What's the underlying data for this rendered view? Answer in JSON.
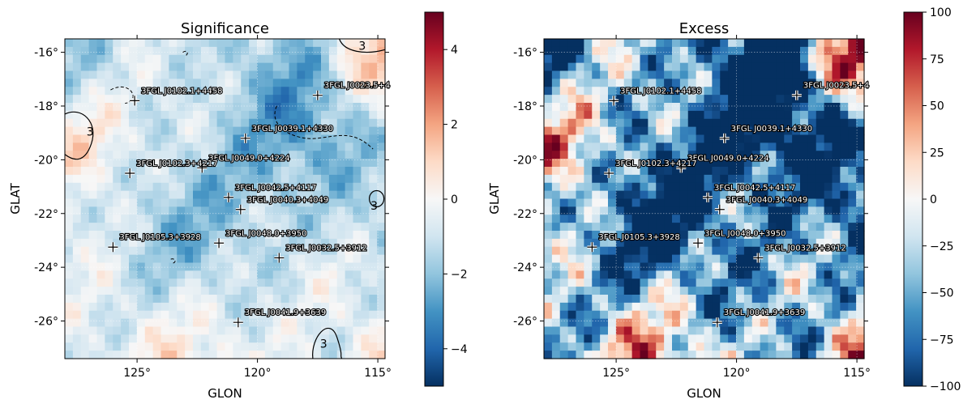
{
  "chart_data": [
    {
      "type": "heatmap",
      "title": "Significance",
      "xlabel": "GLON",
      "ylabel": "GLAT",
      "xlim": [
        128.0,
        114.7
      ],
      "ylim": [
        -27.4,
        -15.5
      ],
      "x_ticks": [
        125,
        120,
        115
      ],
      "x_tick_labels": [
        "125°",
        "120°",
        "115°"
      ],
      "y_ticks": [
        -16,
        -18,
        -20,
        -22,
        -24,
        -26
      ],
      "y_tick_labels": [
        "-16°",
        "-18°",
        "-20°",
        "-22°",
        "-24°",
        "-26°"
      ],
      "colormap": "RdBu_r",
      "colorbar_range": [
        -5,
        5
      ],
      "colorbar_ticks": [
        4,
        2,
        0,
        -2,
        -4
      ],
      "colorbar_tick_labels": [
        "4",
        "2",
        "0",
        "−2",
        "−4"
      ],
      "grid": true,
      "contours": [
        {
          "level": 3,
          "label": "3",
          "style": "solid"
        },
        {
          "level": -3,
          "style": "dashed"
        }
      ],
      "sources": [
        {
          "name": "3FGL J0102.1+4458",
          "glon": 125.1,
          "glat": -17.8
        },
        {
          "name": "3FGL J0023.5+4",
          "glon": 117.5,
          "glat": -17.6
        },
        {
          "name": "3FGL J0039.1+4330",
          "glon": 120.5,
          "glat": -19.2
        },
        {
          "name": "3FGL J0049.0+4224",
          "glon": 122.3,
          "glat": -20.3
        },
        {
          "name": "3FGL J0102.3+4217",
          "glon": 125.3,
          "glat": -20.5
        },
        {
          "name": "3FGL J0042.5+4117",
          "glon": 121.2,
          "glat": -21.4
        },
        {
          "name": "3FGL J0040.3+4049",
          "glon": 120.7,
          "glat": -21.85
        },
        {
          "name": "3FGL J0048.0+3950",
          "glon": 121.6,
          "glat": -23.1
        },
        {
          "name": "3FGL J0105.3+3928",
          "glon": 126.0,
          "glat": -23.25
        },
        {
          "name": "3FGL J0032.5+3912",
          "glon": 119.1,
          "glat": -23.65
        },
        {
          "name": "3FGL J0041.9+3639",
          "glon": 120.8,
          "glat": -26.05
        }
      ]
    },
    {
      "type": "heatmap",
      "title": "Excess",
      "xlabel": "GLON",
      "ylabel": "GLAT",
      "xlim": [
        128.0,
        114.7
      ],
      "ylim": [
        -27.4,
        -15.5
      ],
      "x_ticks": [
        125,
        120,
        115
      ],
      "x_tick_labels": [
        "125°",
        "120°",
        "115°"
      ],
      "y_ticks": [
        -16,
        -18,
        -20,
        -22,
        -24,
        -26
      ],
      "y_tick_labels": [
        "-16°",
        "-18°",
        "-20°",
        "-22°",
        "-24°",
        "-26°"
      ],
      "colormap": "RdBu_r",
      "colorbar_range": [
        -100,
        100
      ],
      "colorbar_ticks": [
        100,
        75,
        50,
        25,
        0,
        -25,
        -50,
        -75,
        -100
      ],
      "colorbar_tick_labels": [
        "100",
        "75",
        "50",
        "25",
        "0",
        "−25",
        "−50",
        "−75",
        "−100"
      ],
      "grid": true,
      "sources": [
        {
          "name": "3FGL J0102.1+4458",
          "glon": 125.1,
          "glat": -17.8
        },
        {
          "name": "3FGL J0023.5+4",
          "glon": 117.5,
          "glat": -17.6
        },
        {
          "name": "3FGL J0039.1+4330",
          "glon": 120.5,
          "glat": -19.2
        },
        {
          "name": "3FGL J0049.0+4224",
          "glon": 122.3,
          "glat": -20.3
        },
        {
          "name": "3FGL J0102.3+4217",
          "glon": 125.3,
          "glat": -20.5
        },
        {
          "name": "3FGL J0042.5+4117",
          "glon": 121.2,
          "glat": -21.4
        },
        {
          "name": "3FGL J0040.3+4049",
          "glon": 120.7,
          "glat": -21.85
        },
        {
          "name": "3FGL J0048.0+3950",
          "glon": 121.6,
          "glat": -23.1
        },
        {
          "name": "3FGL J0105.3+3928",
          "glon": 126.0,
          "glat": -23.25
        },
        {
          "name": "3FGL J0032.5+3912",
          "glon": 119.1,
          "glat": -23.65
        },
        {
          "name": "3FGL J0041.9+3639",
          "glon": 120.8,
          "glat": -26.05
        }
      ]
    }
  ]
}
